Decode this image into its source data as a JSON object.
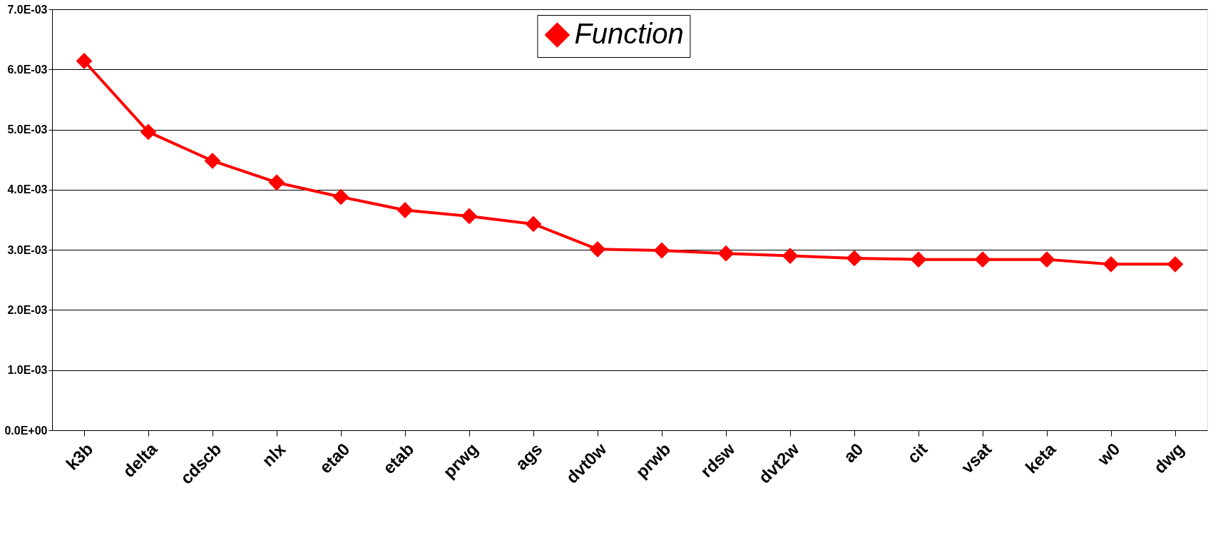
{
  "chart_data": {
    "type": "line",
    "categories": [
      "k3b",
      "delta",
      "cdscb",
      "nlx",
      "eta0",
      "etab",
      "prwg",
      "ags",
      "dvt0w",
      "prwb",
      "rdsw",
      "dvt2w",
      "a0",
      "cit",
      "vsat",
      "keta",
      "w0",
      "dwg"
    ],
    "series": [
      {
        "name": "Function",
        "color": "#ff0000",
        "values": [
          0.00614,
          0.00496,
          0.00448,
          0.00412,
          0.00388,
          0.00366,
          0.00356,
          0.00343,
          0.00301,
          0.00299,
          0.00294,
          0.0029,
          0.00286,
          0.00284,
          0.00284,
          0.00284,
          0.00276,
          0.00276
        ]
      }
    ],
    "ylim": [
      0,
      0.007
    ],
    "yticks": [
      {
        "value": 0,
        "label": "0.0E+00"
      },
      {
        "value": 0.001,
        "label": "1.0E-03"
      },
      {
        "value": 0.002,
        "label": "2.0E-03"
      },
      {
        "value": 0.003,
        "label": "3.0E-03"
      },
      {
        "value": 0.004,
        "label": "4.0E-03"
      },
      {
        "value": 0.005,
        "label": "5.0E-03"
      },
      {
        "value": 0.006,
        "label": "6.0E-03"
      },
      {
        "value": 0.007,
        "label": "7.0E-03"
      }
    ],
    "grid": "y",
    "legend": "top",
    "marker": "diamond",
    "line_style": "solid"
  }
}
